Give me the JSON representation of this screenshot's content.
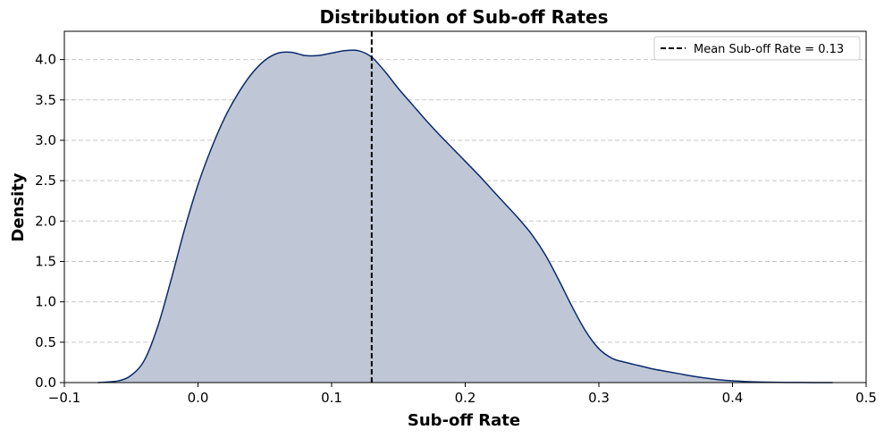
{
  "chart_data": {
    "type": "area",
    "title": "Distribution of Sub-off Rates",
    "xlabel": "Sub-off Rate",
    "ylabel": "Density",
    "xlim": [
      -0.1,
      0.5
    ],
    "ylim": [
      0.0,
      4.35
    ],
    "x_ticks": [
      -0.1,
      0.0,
      0.1,
      0.2,
      0.3,
      0.4,
      0.5
    ],
    "x_tick_labels": [
      "−0.1",
      "0.0",
      "0.1",
      "0.2",
      "0.3",
      "0.4",
      "0.5"
    ],
    "y_ticks": [
      0.0,
      0.5,
      1.0,
      1.5,
      2.0,
      2.5,
      3.0,
      3.5,
      4.0
    ],
    "y_tick_labels": [
      "0.0",
      "0.5",
      "1.0",
      "1.5",
      "2.0",
      "2.5",
      "3.0",
      "3.5",
      "4.0"
    ],
    "grid": "y-dashed",
    "legend_position": "top-right",
    "series": [
      {
        "kind": "kde",
        "x": [
          -0.075,
          -0.06,
          -0.05,
          -0.04,
          -0.03,
          -0.02,
          -0.01,
          0.0,
          0.01,
          0.02,
          0.03,
          0.04,
          0.05,
          0.06,
          0.07,
          0.08,
          0.09,
          0.1,
          0.11,
          0.12,
          0.13,
          0.14,
          0.15,
          0.16,
          0.17,
          0.18,
          0.19,
          0.2,
          0.21,
          0.22,
          0.23,
          0.24,
          0.25,
          0.26,
          0.27,
          0.28,
          0.29,
          0.3,
          0.31,
          0.32,
          0.33,
          0.34,
          0.35,
          0.36,
          0.37,
          0.38,
          0.39,
          0.4,
          0.41,
          0.42,
          0.43,
          0.44,
          0.45,
          0.46,
          0.475
        ],
        "y": [
          0.0,
          0.02,
          0.09,
          0.28,
          0.7,
          1.28,
          1.9,
          2.45,
          2.9,
          3.28,
          3.58,
          3.82,
          3.99,
          4.08,
          4.09,
          4.05,
          4.05,
          4.08,
          4.11,
          4.11,
          4.03,
          3.85,
          3.64,
          3.45,
          3.26,
          3.08,
          2.91,
          2.74,
          2.57,
          2.39,
          2.21,
          2.03,
          1.83,
          1.58,
          1.27,
          0.94,
          0.64,
          0.42,
          0.3,
          0.25,
          0.21,
          0.17,
          0.14,
          0.11,
          0.08,
          0.055,
          0.035,
          0.022,
          0.013,
          0.007,
          0.004,
          0.002,
          0.001,
          0.0005,
          0.0
        ]
      }
    ],
    "mean_line": {
      "x": 0.13,
      "label": "Mean Sub-off Rate = 0.13"
    },
    "colors": {
      "line": "#0b2a6b",
      "fill": "#bfc7d6",
      "mean_line": "#000000",
      "grid": "#c7c7c7"
    }
  }
}
